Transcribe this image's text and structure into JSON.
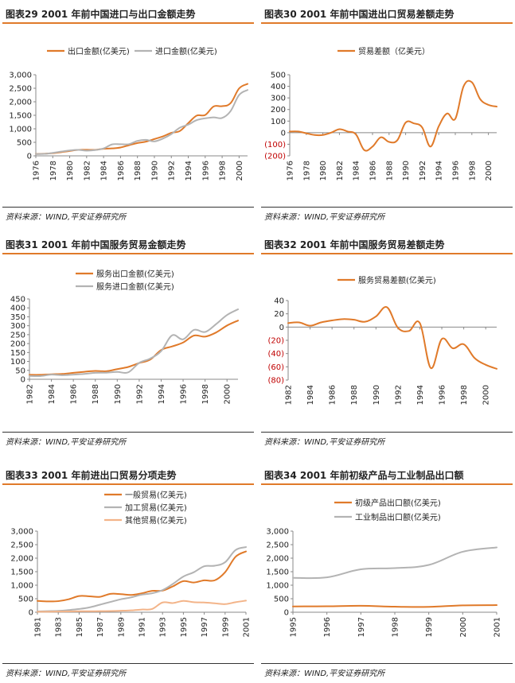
{
  "source_note": "资料来源：WIND,平安证券研究所",
  "colors": {
    "orange": "#e07a2a",
    "gray": "#b3b3b3",
    "peach": "#f3b489",
    "negative_tick": "#c00000",
    "header_rule": "#e07a2a"
  },
  "chart_data": [
    {
      "id": "c29",
      "type": "line",
      "title": "图表29    2001 年前中国进口与出口金额走势",
      "xlabel": "",
      "ylabel": "",
      "x": [
        1976,
        1977,
        1978,
        1979,
        1980,
        1981,
        1982,
        1983,
        1984,
        1985,
        1986,
        1987,
        1988,
        1989,
        1990,
        1991,
        1992,
        1993,
        1994,
        1995,
        1996,
        1997,
        1998,
        1999,
        2000,
        2001
      ],
      "x_ticks": [
        1976,
        1978,
        1980,
        1982,
        1984,
        1986,
        1988,
        1990,
        1992,
        1994,
        1996,
        1998,
        2000
      ],
      "y_ticks": [
        "0",
        "500",
        "1,000",
        "1,500",
        "2,000",
        "2,500",
        "3,000"
      ],
      "ylim": [
        0,
        3000
      ],
      "grid": false,
      "legend_position": "top",
      "series": [
        {
          "name": "出口金额(亿美元)",
          "color": "#e07a2a",
          "values": [
            70,
            76,
            98,
            137,
            181,
            220,
            223,
            222,
            261,
            274,
            309,
            394,
            475,
            525,
            621,
            719,
            849,
            917,
            1210,
            1488,
            1511,
            1828,
            1837,
            1949,
            2492,
            2661
          ]
        },
        {
          "name": "进口金额(亿美元)",
          "color": "#b3b3b3",
          "values": [
            66,
            72,
            109,
            157,
            200,
            220,
            193,
            214,
            274,
            423,
            429,
            432,
            553,
            591,
            534,
            638,
            806,
            1040,
            1156,
            1321,
            1388,
            1424,
            1402,
            1657,
            2251,
            2436
          ]
        }
      ]
    },
    {
      "id": "c30",
      "type": "line",
      "title": "图表30    2001 年前中国进出口贸易差额走势",
      "xlabel": "",
      "ylabel": "",
      "x": [
        1976,
        1977,
        1978,
        1979,
        1980,
        1981,
        1982,
        1983,
        1984,
        1985,
        1986,
        1987,
        1988,
        1989,
        1990,
        1991,
        1992,
        1993,
        1994,
        1995,
        1996,
        1997,
        1998,
        1999,
        2000,
        2001
      ],
      "x_ticks": [
        1976,
        1978,
        1980,
        1982,
        1984,
        1986,
        1988,
        1990,
        1992,
        1994,
        1996,
        1998,
        2000
      ],
      "y_ticks": [
        "500",
        "400",
        "300",
        "200",
        "100",
        "0",
        "(100)",
        "(200)"
      ],
      "ylim": [
        -200,
        500
      ],
      "grid": false,
      "legend_position": "top",
      "series": [
        {
          "name": "贸易差额（亿美元）",
          "color": "#e07a2a",
          "values": [
            10,
            10,
            -5,
            -20,
            -20,
            0,
            30,
            10,
            -15,
            -150,
            -120,
            -40,
            -80,
            -65,
            87,
            80,
            45,
            -120,
            55,
            165,
            120,
            400,
            435,
            290,
            240,
            225
          ]
        }
      ]
    },
    {
      "id": "c31",
      "type": "line",
      "title": "图表31    2001 年前中国服务贸易金额走势",
      "xlabel": "",
      "ylabel": "",
      "x": [
        1982,
        1983,
        1984,
        1985,
        1986,
        1987,
        1988,
        1989,
        1990,
        1991,
        1992,
        1993,
        1994,
        1995,
        1996,
        1997,
        1998,
        1999,
        2000,
        2001
      ],
      "x_ticks": [
        1982,
        1984,
        1986,
        1988,
        1990,
        1992,
        1994,
        1996,
        1998,
        2000
      ],
      "y_ticks": [
        "0",
        "50",
        "100",
        "150",
        "200",
        "250",
        "300",
        "350",
        "400",
        "450"
      ],
      "ylim": [
        0,
        450
      ],
      "grid": false,
      "legend_position": "top",
      "series": [
        {
          "name": "服务出口金额(亿美元)",
          "color": "#e07a2a",
          "values": [
            25,
            25,
            28,
            30,
            36,
            42,
            47,
            45,
            57,
            69,
            91,
            110,
            164,
            184,
            206,
            245,
            239,
            262,
            301,
            329
          ]
        },
        {
          "name": "服务进口金额(亿美元)",
          "color": "#b3b3b3",
          "values": [
            19,
            18,
            26,
            23,
            26,
            30,
            36,
            37,
            41,
            39,
            92,
            116,
            158,
            246,
            224,
            277,
            265,
            309,
            360,
            392
          ]
        }
      ]
    },
    {
      "id": "c32",
      "type": "line",
      "title": "图表32    2001 年前中国服务贸易差额走势",
      "xlabel": "",
      "ylabel": "",
      "x": [
        1982,
        1983,
        1984,
        1985,
        1986,
        1987,
        1988,
        1989,
        1990,
        1991,
        1992,
        1993,
        1994,
        1995,
        1996,
        1997,
        1998,
        1999,
        2000,
        2001
      ],
      "x_ticks": [
        1982,
        1984,
        1986,
        1988,
        1990,
        1992,
        1994,
        1996,
        1998,
        2000
      ],
      "y_ticks": [
        "40",
        "20",
        "0",
        "(20)",
        "(40)",
        "(60)",
        "(80)"
      ],
      "ylim": [
        -80,
        40
      ],
      "grid": false,
      "legend_position": "top",
      "series": [
        {
          "name": "服务贸易差额(亿美元)",
          "color": "#e07a2a",
          "values": [
            6,
            7,
            2,
            7,
            10,
            12,
            11,
            8,
            16,
            30,
            -1,
            -6,
            6,
            -62,
            -18,
            -32,
            -26,
            -47,
            -57,
            -63
          ]
        }
      ]
    },
    {
      "id": "c33",
      "type": "line",
      "title": "图表33    2001 年前进出口贸易分项走势",
      "xlabel": "",
      "ylabel": "",
      "x": [
        1981,
        1982,
        1983,
        1984,
        1985,
        1986,
        1987,
        1988,
        1989,
        1990,
        1991,
        1992,
        1993,
        1994,
        1995,
        1996,
        1997,
        1998,
        1999,
        2000,
        2001
      ],
      "x_ticks": [
        1981,
        1983,
        1985,
        1987,
        1989,
        1991,
        1993,
        1995,
        1997,
        1999,
        2001
      ],
      "y_ticks": [
        "0",
        "500",
        "1,000",
        "1,500",
        "2,000",
        "2,500",
        "3,000"
      ],
      "ylim": [
        0,
        3000
      ],
      "grid": false,
      "legend_position": "top-right",
      "series": [
        {
          "name": "一般贸易(亿美元)",
          "color": "#e07a2a",
          "values": [
            420,
            400,
            410,
            480,
            600,
            590,
            570,
            680,
            670,
            640,
            700,
            790,
            800,
            960,
            1150,
            1100,
            1180,
            1180,
            1480,
            2050,
            2250
          ]
        },
        {
          "name": "加工贸易(亿美元)",
          "color": "#b3b3b3",
          "values": [
            30,
            40,
            50,
            80,
            120,
            180,
            280,
            380,
            480,
            550,
            650,
            700,
            820,
            1050,
            1320,
            1480,
            1700,
            1720,
            1850,
            2300,
            2410
          ]
        },
        {
          "name": "其他贸易(亿美元)",
          "color": "#f3b489",
          "values": [
            20,
            20,
            25,
            30,
            35,
            35,
            40,
            45,
            55,
            70,
            100,
            120,
            360,
            340,
            420,
            370,
            360,
            330,
            300,
            370,
            430
          ]
        }
      ]
    },
    {
      "id": "c34",
      "type": "line",
      "title": "图表34    2001 年前初级产品与工业制品出口额",
      "xlabel": "",
      "ylabel": "",
      "x": [
        1995,
        1996,
        1997,
        1998,
        1999,
        2000,
        2001
      ],
      "x_ticks": [
        1995,
        1996,
        1997,
        1998,
        1999,
        2000,
        2001
      ],
      "y_ticks": [
        "0",
        "500",
        "1,000",
        "1,500",
        "2,000",
        "2,500",
        "3,000"
      ],
      "ylim": [
        0,
        3000
      ],
      "grid": false,
      "legend_position": "top",
      "series": [
        {
          "name": "初级产品出口额(亿美元)",
          "color": "#e07a2a",
          "values": [
            214,
            219,
            240,
            205,
            200,
            255,
            263
          ]
        },
        {
          "name": "工业制品出口额(亿美元)",
          "color": "#b3b3b3",
          "values": [
            1273,
            1291,
            1588,
            1632,
            1749,
            2237,
            2398
          ]
        }
      ]
    }
  ]
}
